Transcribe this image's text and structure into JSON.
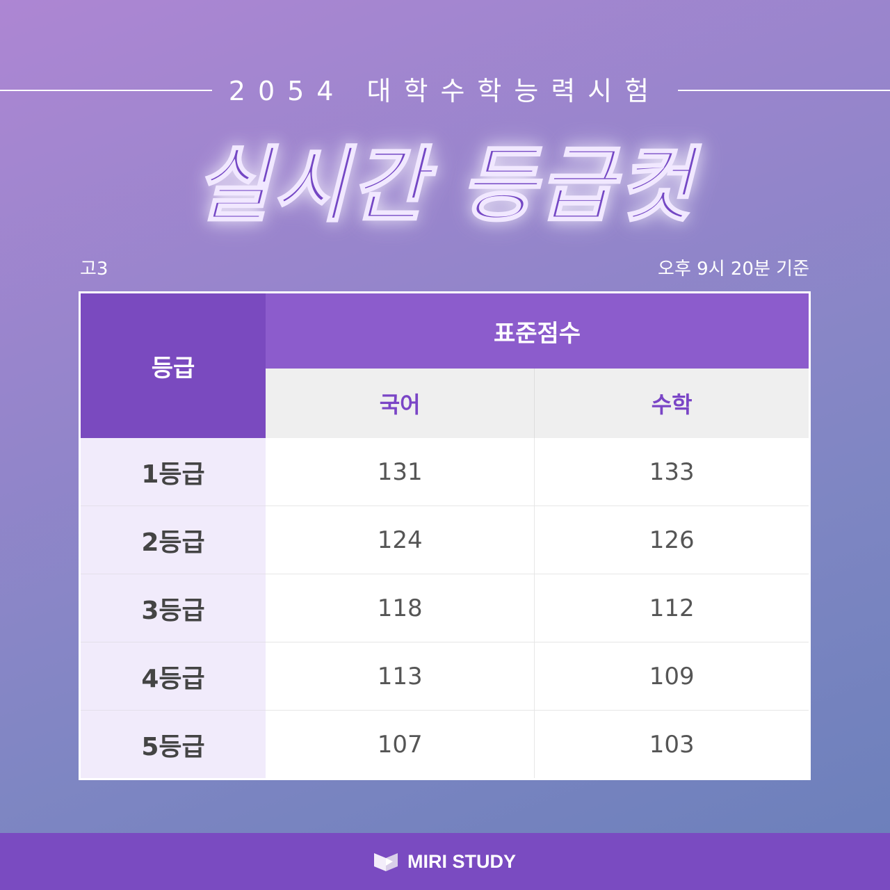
{
  "header": {
    "subtitle": "2054 대학수학능력시험",
    "title": "실시간 등급컷"
  },
  "meta": {
    "grade_level": "고3",
    "timestamp": "오후 9시 20분 기준"
  },
  "table": {
    "grade_header": "등급",
    "score_header": "표준점수",
    "subjects": [
      "국어",
      "수학"
    ],
    "rows": [
      {
        "grade": "1등급",
        "values": [
          "131",
          "133"
        ]
      },
      {
        "grade": "2등급",
        "values": [
          "124",
          "126"
        ]
      },
      {
        "grade": "3등급",
        "values": [
          "118",
          "112"
        ]
      },
      {
        "grade": "4등급",
        "values": [
          "113",
          "109"
        ]
      },
      {
        "grade": "5등급",
        "values": [
          "107",
          "103"
        ]
      }
    ]
  },
  "footer": {
    "brand": "MIRI STUDY",
    "logo_icon": "book-icon"
  },
  "colors": {
    "accent": "#7a4bc1",
    "header": "#8c5ccc"
  }
}
